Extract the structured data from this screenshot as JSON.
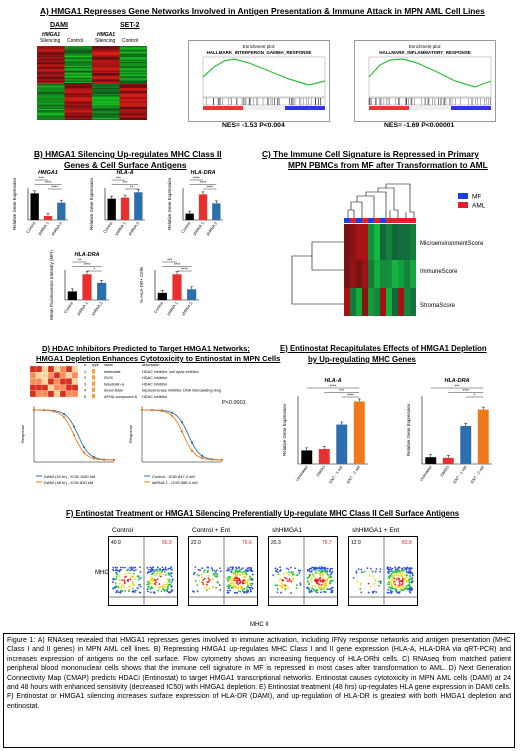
{
  "panelA": {
    "title": "A) HMGA1 Represses Gene Networks Involved in Antigen Presentation & Immune Attack in MPN AML Cell Lines",
    "dami": "DAMI",
    "set2": "SET-2",
    "col1": "HMGA1",
    "col1b": "Silencing",
    "col2": "Control",
    "col3": "HMGA1",
    "col3b": "Silencing",
    "col4": "Control",
    "gsea1_title": "Enrichment plot:",
    "gsea1_sub": "HALLMARK_INTERFERON_GAMMA_RESPONSE",
    "gsea2_title": "Enrichment plot:",
    "gsea2_sub": "HALLMARK_INFLAMMATORY_RESPONSE",
    "nes1": "NES= -1.53  P<0.004",
    "nes2": "NES= -1.69  P<0.00001"
  },
  "panelB": {
    "title1": "B) HMGA1 Silencing Up-regulates MHC Class II",
    "title2": "Genes & Cell Surface Antigens",
    "ylab_rel": "Relative Gene Expression",
    "charts": [
      {
        "label": "HMGA1",
        "categories": [
          "Control",
          "shRNA 1",
          "shRNA 2"
        ],
        "values": [
          1.0,
          0.15,
          0.65
        ],
        "colors": [
          "#000000",
          "#e8302f",
          "#2d6fad"
        ],
        "sig": [
          "***",
          "****",
          "****"
        ]
      },
      {
        "label": "HLA-A",
        "categories": [
          "Control",
          "shRNA 1",
          "shRNA 2"
        ],
        "values": [
          1.0,
          1.05,
          1.3
        ],
        "colors": [
          "#000000",
          "#e8302f",
          "#2d6fad"
        ],
        "sig": [
          "***",
          "***",
          "**"
        ]
      },
      {
        "label": "HLA-DRA",
        "categories": [
          "Control",
          "shRNA 1",
          "shRNA 2"
        ],
        "values": [
          1.0,
          4.0,
          2.6
        ],
        "colors": [
          "#000000",
          "#e8302f",
          "#2d6fad"
        ],
        "sig": [
          "****",
          "****",
          "****"
        ]
      },
      {
        "label": "HLA-DRA",
        "ylabel": "Mean Fluorescence Intensity (MFI)",
        "categories": [
          "Control",
          "shRNA 1",
          "shRNA 2"
        ],
        "values": [
          1.0,
          3.0,
          2.0
        ],
        "colors": [
          "#000000",
          "#e8302f",
          "#2d6fad"
        ],
        "sig": [
          "**",
          "****",
          "*"
        ]
      },
      {
        "label": "",
        "ylabel": "% HLA-DR+ Cells",
        "categories": [
          "Control",
          "shRNA 1",
          "shRNA 2"
        ],
        "values": [
          1.0,
          3.6,
          1.5
        ],
        "colors": [
          "#000000",
          "#e8302f",
          "#2d6fad"
        ],
        "sig": [
          "***",
          "****",
          "****"
        ]
      }
    ]
  },
  "panelC": {
    "title1": "C) The Immune Cell Signature is Repressed in Primary",
    "title2": "MPN PBMCs from MF after Transformation to AML",
    "legend_mf": "MF",
    "legend_aml": "AML",
    "row1": "MicroenvironmentScore",
    "row2": "ImmuneScore",
    "row3": "StromaScore",
    "mf_color": "#1f3fe6",
    "aml_color": "#e61f2f"
  },
  "panelD": {
    "title1": "D) HDAC Inhibitors Predicted to Target HMGA1 Networks;",
    "title2": "HMGA1 Depletion Enhances Cytotoxicity to Entinostat in MPN Cells",
    "table_header": [
      "#",
      "type",
      "name",
      "description"
    ],
    "table_rows": [
      [
        "1",
        "",
        "entinostat",
        "HDAC inhibitor, cell cycle inhibitor"
      ],
      [
        "2",
        "",
        "ISOX",
        "HDAC inhibitor"
      ],
      [
        "3",
        "",
        "tubastatin-a",
        "HDAC inhibitor"
      ],
      [
        "4",
        "",
        "doxorubicin",
        "topoisomerase inhibitor, DNA intercalating drug"
      ],
      [
        "5",
        "",
        "APHA-compound-8",
        "HDAC inhibitor"
      ]
    ],
    "pval": "P<0.0001",
    "legend_left": [
      "DAMI (24 hr) - IC50 1160 nM",
      "DAMI (48 hr) - IC50 630 nM"
    ],
    "legend_right": [
      "Control - IC50 847.4 nM",
      "shRNA 1 - IC50 586.3 nM"
    ],
    "ylabel": "Response"
  },
  "panelE": {
    "title1": "E) Entinostat Recapitulates Effects of HMGA1 Depletion",
    "title2": "by Up-regulating MHC Genes",
    "ylab": "Relative Gene Expression",
    "charts": [
      {
        "label": "HLA-A",
        "categories": [
          "Untreated",
          "DMSO",
          "ENT - 1 nM",
          "ENT - 2 nM"
        ],
        "values": [
          1.0,
          1.1,
          2.9,
          4.6
        ],
        "ylim": [
          0,
          5
        ],
        "colors": [
          "#000000",
          "#e8302f",
          "#2d6fad",
          "#f07a1a"
        ],
        "sig": [
          "****",
          "***",
          "****"
        ]
      },
      {
        "label": "HLA-DRA",
        "categories": [
          "Untreated",
          "DMSO",
          "ENT - 1 nM",
          "ENT - 2 nM"
        ],
        "values": [
          1.0,
          0.9,
          5.6,
          8.0
        ],
        "ylim": [
          0,
          10
        ],
        "colors": [
          "#000000",
          "#e8302f",
          "#2d6fad",
          "#f07a1a"
        ],
        "sig": [
          "***",
          "****",
          "*"
        ]
      }
    ]
  },
  "panelF": {
    "title": "F) Entinostat Treatment or HMGA1 Silencing Preferentially Up-regulate MHC Class II Cell Surface Antigens",
    "ylabel": "MHC I",
    "xlabel": "MHC II",
    "plots": [
      {
        "name": "Control",
        "left": "40.9",
        "right": "56.9"
      },
      {
        "name": "Control + Ent",
        "left": "22.0",
        "right": "76.6"
      },
      {
        "name": "shHMGA1",
        "left": "20.3",
        "right": "75.7"
      },
      {
        "name": "shHMGA1 + Ent",
        "left": "12.9",
        "right": "83.8"
      }
    ]
  },
  "caption": {
    "text": "Figure 1: A) RNAseq revealed that HMGA1 represses genes involved in immune activation, including IFNy response networks and antigen presentation (MHC Class I and II genes) in MPN AML cell lines. B) Repressing HMGA1 up-regulates MHC Class I and II gene expression (HLA-A, HLA-DRA via qRT-PCR) and increases expression of antigens on the cell surface. Flow cytometry shows an increasing frequency of HLA-DRhi cells. C) RNAseq from matched patient peripheral blood mononuclear cells shows that the immune cell signature in MF is repressed in most cases after transformation to AML. D) Next Generation Connectivity Map (CMAP) predicts HDACi (Entinostat) to target HMGA1 transcriptional networks. Entinostat causes cytotoxicity in MPN AML cells (DAMI) at 24 and 48 hours with enhanced sensitivity (decreased IC50) with HMGA1 depletion. E) Entinostat treatment (48 hrs) up-regulates HLA gene expression in DAMI cells. F) Entinostat or HMGA1 silencing increases surface expression of HLA-DR (DAMI), and up-regulation of HLA-DR is greatest with both HMGA1 depletion and entinostat."
  }
}
